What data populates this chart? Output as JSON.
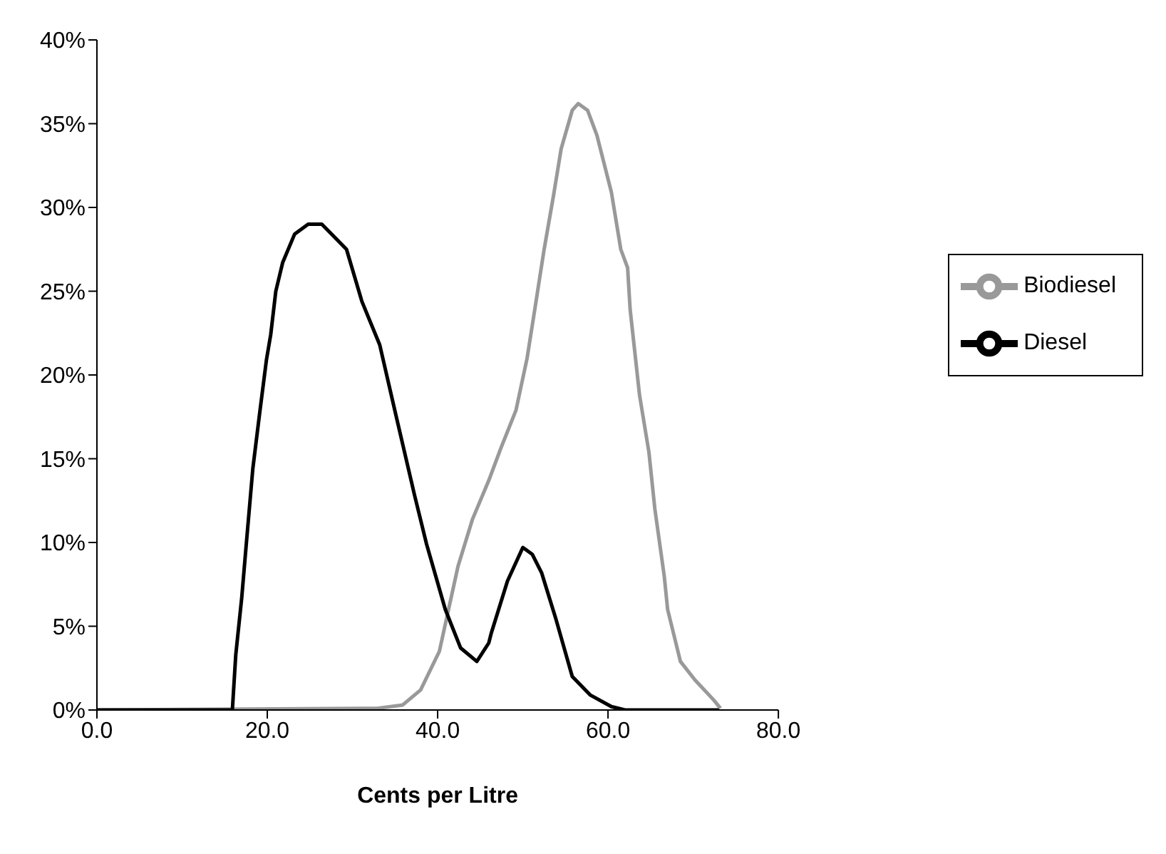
{
  "chart_data": {
    "type": "line",
    "xlabel": "Cents per Litre",
    "xlim": [
      0,
      80
    ],
    "xticks": [
      {
        "value": 0,
        "label": "0.0"
      },
      {
        "value": 20,
        "label": "20.0"
      },
      {
        "value": 40,
        "label": "40.0"
      },
      {
        "value": 60,
        "label": "60.0"
      },
      {
        "value": 80,
        "label": "80.0"
      }
    ],
    "ylim": [
      0,
      40
    ],
    "yticks": [
      {
        "value": 0,
        "label": "0%"
      },
      {
        "value": 5,
        "label": "5%"
      },
      {
        "value": 10,
        "label": "10%"
      },
      {
        "value": 15,
        "label": "15%"
      },
      {
        "value": 20,
        "label": "20%"
      },
      {
        "value": 25,
        "label": "25%"
      },
      {
        "value": 30,
        "label": "30%"
      },
      {
        "value": 35,
        "label": "35%"
      },
      {
        "value": 40,
        "label": "40%"
      }
    ],
    "grid": false,
    "legend": "right",
    "marker": "none",
    "line_style": "solid",
    "series": [
      {
        "name": "Biodiesel",
        "color": "#999999",
        "x": [
          0,
          32.9,
          35.9,
          38.0,
          40.2,
          42.4,
          44.1,
          46.0,
          47.4,
          49.2,
          50.5,
          51.4,
          52.5,
          53.6,
          54.5,
          55.8,
          56.5,
          57.6,
          58.7,
          60.4,
          61.5,
          62.3,
          62.6,
          63.7,
          64.8,
          65.5,
          66.6,
          67.0,
          68.5,
          70.2,
          72.4,
          73.2
        ],
        "values": [
          0,
          0.1,
          0.3,
          1.2,
          3.5,
          8.6,
          11.4,
          13.7,
          15.6,
          17.9,
          21.0,
          23.9,
          27.5,
          30.7,
          33.5,
          35.8,
          36.2,
          35.8,
          34.3,
          30.9,
          27.5,
          26.4,
          23.9,
          18.8,
          15.4,
          12.0,
          8.0,
          6.0,
          2.9,
          1.8,
          0.6,
          0.1
        ]
      },
      {
        "name": "Diesel",
        "color": "#000000",
        "x": [
          0,
          15.9,
          16.3,
          17.0,
          17.5,
          18.3,
          19.1,
          19.9,
          20.4,
          21.0,
          21.8,
          23.2,
          24.8,
          26.4,
          29.3,
          31.1,
          33.2,
          35.1,
          37.3,
          38.7,
          40.9,
          42.7,
          44.6,
          46.0,
          46.3,
          48.2,
          50.0,
          51.1,
          52.2,
          53.9,
          55.8,
          57.9,
          60.4,
          62.0,
          73.0
        ],
        "values": [
          0,
          0,
          3.3,
          6.7,
          9.7,
          14.4,
          17.7,
          20.9,
          22.4,
          25.0,
          26.7,
          28.4,
          29.0,
          29.0,
          27.5,
          24.4,
          21.8,
          17.6,
          12.8,
          9.9,
          6.0,
          3.7,
          2.9,
          4.0,
          4.6,
          7.7,
          9.7,
          9.3,
          8.2,
          5.4,
          2.0,
          0.9,
          0.2,
          0,
          0
        ]
      }
    ]
  }
}
